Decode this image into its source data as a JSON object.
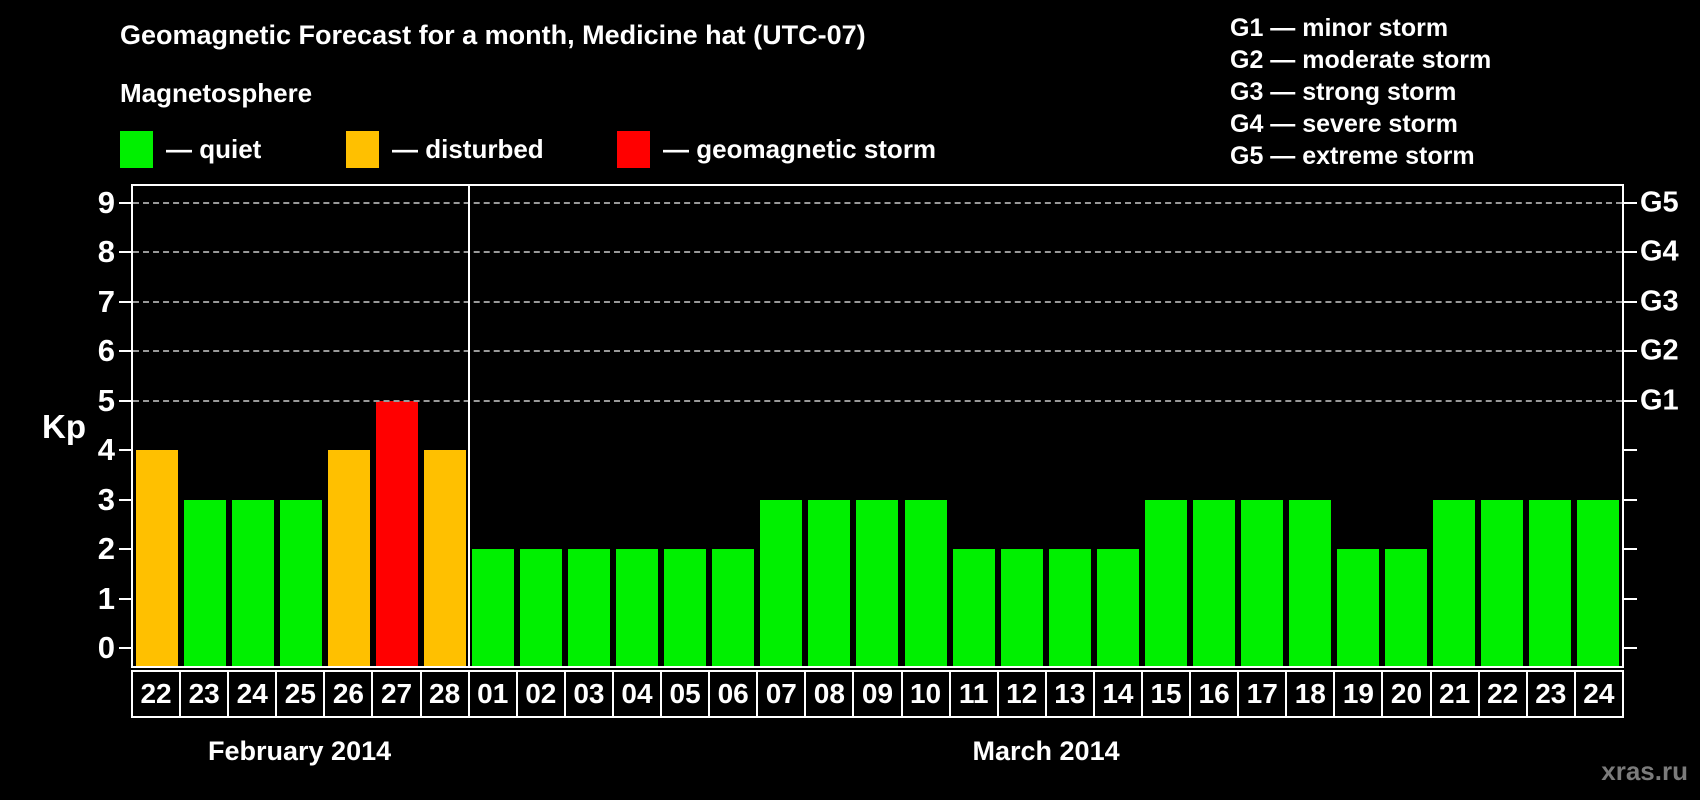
{
  "title": "Geomagnetic Forecast for a month, Medicine hat (UTC-07)",
  "subtitle": "Magnetosphere",
  "legend": {
    "items": [
      {
        "name": "quiet",
        "label": "— quiet",
        "color": "#00F000",
        "x": 120
      },
      {
        "name": "disturbed",
        "label": "— disturbed",
        "color": "#FFC000",
        "x": 346
      },
      {
        "name": "storm",
        "label": "— geomagnetic storm",
        "color": "#FF0000",
        "x": 617
      }
    ]
  },
  "g_scale_legend": [
    "G1 — minor storm",
    "G2 — moderate storm",
    "G3 — strong storm",
    "G4 — severe storm",
    "G5 — extreme storm"
  ],
  "watermark": "xras.ru",
  "chart_data": {
    "type": "bar",
    "ylabel": "Kp",
    "ylim": [
      -0.36,
      9.34
    ],
    "y_ticks": [
      0,
      1,
      2,
      3,
      4,
      5,
      6,
      7,
      8,
      9
    ],
    "gridlines_at": [
      5,
      6,
      7,
      8,
      9
    ],
    "grid_color": "#999999",
    "right_axis_labels": [
      {
        "kp": 5,
        "label": "G1"
      },
      {
        "kp": 6,
        "label": "G2"
      },
      {
        "kp": 7,
        "label": "G3"
      },
      {
        "kp": 8,
        "label": "G4"
      },
      {
        "kp": 9,
        "label": "G5"
      }
    ],
    "colors": {
      "quiet": "#00F000",
      "disturbed": "#FFC000",
      "storm": "#FF0000"
    },
    "months": [
      {
        "label": "February 2014",
        "days": [
          {
            "day": "22",
            "kp": 4,
            "status": "disturbed"
          },
          {
            "day": "23",
            "kp": 3,
            "status": "quiet"
          },
          {
            "day": "24",
            "kp": 3,
            "status": "quiet"
          },
          {
            "day": "25",
            "kp": 3,
            "status": "quiet"
          },
          {
            "day": "26",
            "kp": 4,
            "status": "disturbed"
          },
          {
            "day": "27",
            "kp": 5,
            "status": "storm"
          },
          {
            "day": "28",
            "kp": 4,
            "status": "disturbed"
          }
        ]
      },
      {
        "label": "March 2014",
        "days": [
          {
            "day": "01",
            "kp": 2,
            "status": "quiet"
          },
          {
            "day": "02",
            "kp": 2,
            "status": "quiet"
          },
          {
            "day": "03",
            "kp": 2,
            "status": "quiet"
          },
          {
            "day": "04",
            "kp": 2,
            "status": "quiet"
          },
          {
            "day": "05",
            "kp": 2,
            "status": "quiet"
          },
          {
            "day": "06",
            "kp": 2,
            "status": "quiet"
          },
          {
            "day": "07",
            "kp": 3,
            "status": "quiet"
          },
          {
            "day": "08",
            "kp": 3,
            "status": "quiet"
          },
          {
            "day": "09",
            "kp": 3,
            "status": "quiet"
          },
          {
            "day": "10",
            "kp": 3,
            "status": "quiet"
          },
          {
            "day": "11",
            "kp": 2,
            "status": "quiet"
          },
          {
            "day": "12",
            "kp": 2,
            "status": "quiet"
          },
          {
            "day": "13",
            "kp": 2,
            "status": "quiet"
          },
          {
            "day": "14",
            "kp": 2,
            "status": "quiet"
          },
          {
            "day": "15",
            "kp": 3,
            "status": "quiet"
          },
          {
            "day": "16",
            "kp": 3,
            "status": "quiet"
          },
          {
            "day": "17",
            "kp": 3,
            "status": "quiet"
          },
          {
            "day": "18",
            "kp": 3,
            "status": "quiet"
          },
          {
            "day": "19",
            "kp": 2,
            "status": "quiet"
          },
          {
            "day": "20",
            "kp": 2,
            "status": "quiet"
          },
          {
            "day": "21",
            "kp": 3,
            "status": "quiet"
          },
          {
            "day": "22",
            "kp": 3,
            "status": "quiet"
          },
          {
            "day": "23",
            "kp": 3,
            "status": "quiet"
          },
          {
            "day": "24",
            "kp": 3,
            "status": "quiet"
          }
        ]
      }
    ]
  }
}
